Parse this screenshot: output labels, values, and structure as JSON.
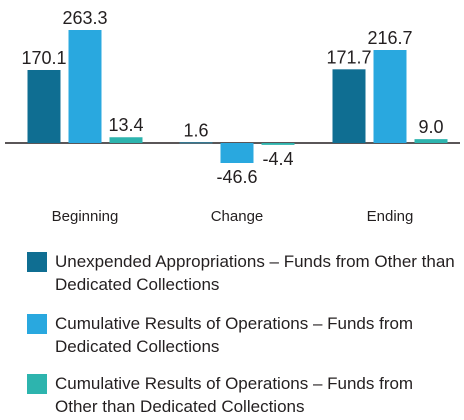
{
  "chart_data": {
    "type": "bar",
    "categories": [
      "Beginning",
      "Change",
      "Ending"
    ],
    "series": [
      {
        "name": "Unexpended Appropriations – Funds from Other than Dedicated Collections",
        "color": "#0f6e92",
        "values": [
          170.1,
          1.6,
          171.7
        ],
        "value_labels": [
          "170.1",
          "1.6",
          "171.7"
        ]
      },
      {
        "name": "Cumulative Results of Operations – Funds from Dedicated Collections",
        "color": "#29a8df",
        "values": [
          263.3,
          -46.6,
          216.7
        ],
        "value_labels": [
          "263.3",
          "-46.6",
          "216.7"
        ]
      },
      {
        "name": "Cumulative Results of Operations – Funds from Other than Dedicated Collections",
        "color": "#2db4ae",
        "values": [
          13.4,
          -4.4,
          9.0
        ],
        "value_labels": [
          "13.4",
          "-4.4",
          "9.0"
        ]
      }
    ]
  }
}
